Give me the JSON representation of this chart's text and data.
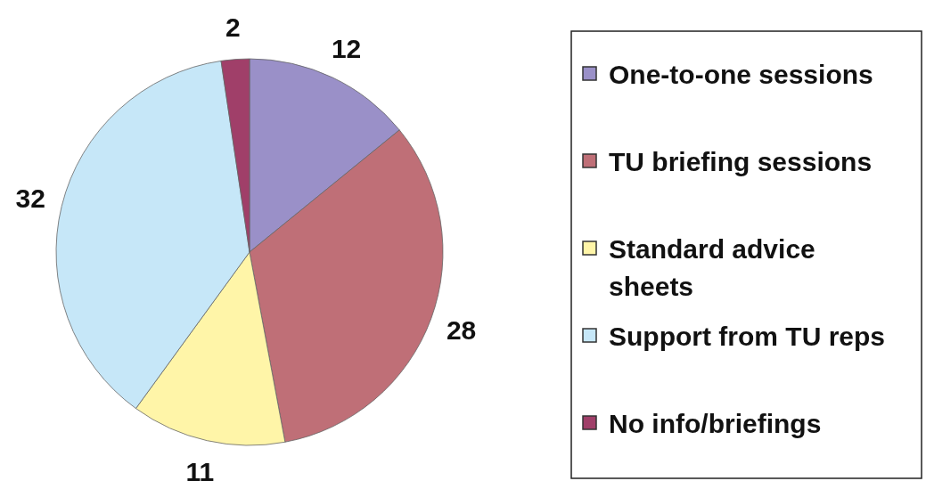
{
  "chart_data": {
    "type": "pie",
    "categories": [
      "One-to-one sessions",
      "TU briefing sessions",
      "Standard advice sheets",
      "Support from TU reps",
      "No info/briefings"
    ],
    "values": [
      12,
      28,
      11,
      32,
      2
    ],
    "colors": [
      "#9a90c8",
      "#bf6f77",
      "#fff5a8",
      "#c6e7f8",
      "#a03f69"
    ],
    "data_labels": true,
    "legend": "right"
  }
}
